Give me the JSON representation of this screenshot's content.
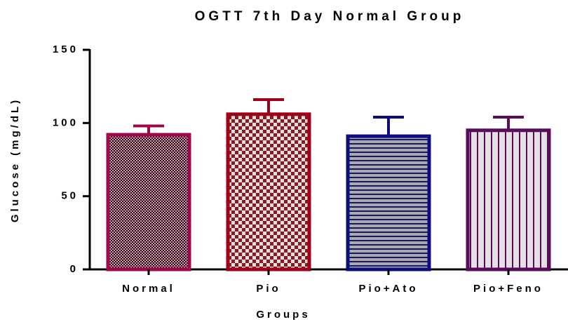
{
  "chart_data": {
    "type": "bar",
    "title": "OGTT 7th Day Normal Group",
    "x_label": "Groups",
    "y_label": "Glucose (mg/dL)",
    "categories": [
      "Normal",
      "Pio",
      "Pio+Ato",
      "Pio+Feno"
    ],
    "values": [
      92,
      106,
      91,
      95
    ],
    "errors": [
      6,
      10,
      13,
      9
    ],
    "colors": [
      "#a0064b",
      "#a00018",
      "#0c0c80",
      "#5a0b5a"
    ],
    "ylim": [
      0,
      150
    ],
    "yticks": [
      0,
      50,
      100,
      150
    ],
    "grid": false
  }
}
